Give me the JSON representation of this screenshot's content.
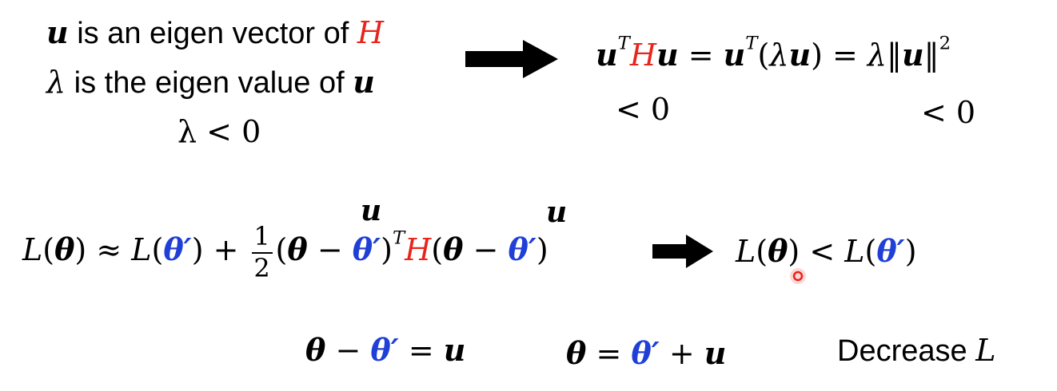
{
  "left_block": {
    "line1_text": " is an eigen vector of ",
    "line2_text": " is the eigen value of ",
    "line3": "λ < 0"
  },
  "top_right": {
    "lt0_a": "< 0",
    "lt0_b": "< 0"
  },
  "labels": {
    "u_over_first": "u",
    "u_over_second": "u"
  },
  "bottom": {
    "decrease_word": "Decrease "
  },
  "symbols": {
    "u": "u",
    "H": "H",
    "lambda": "λ",
    "L": "L",
    "theta": "θ",
    "theta_prime": "θ′",
    "T": "T",
    "two": "2",
    "one": "1"
  },
  "colors": {
    "red": "#e8241c",
    "blue": "#1f3fd6",
    "cursor": "#e8241c"
  }
}
